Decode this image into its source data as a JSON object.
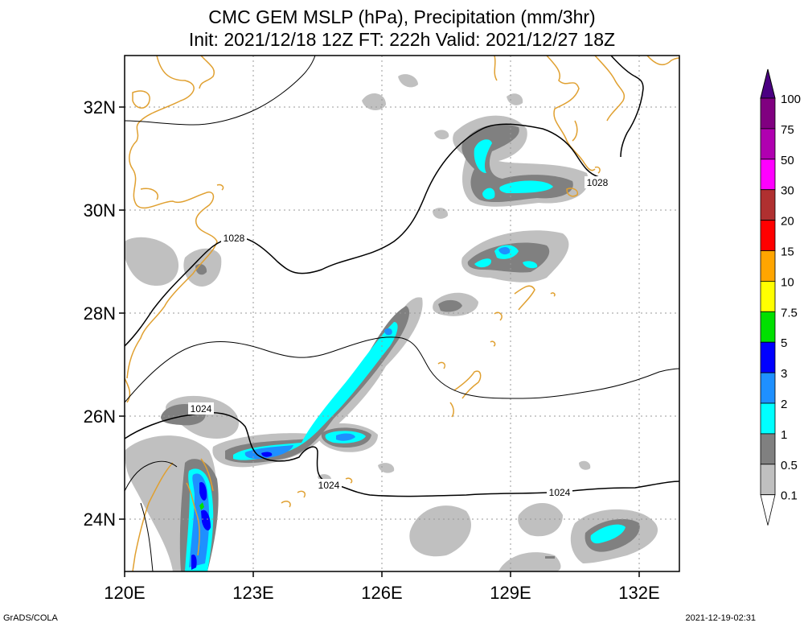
{
  "title": {
    "line1": "CMC GEM MSLP (hPa), Precipitation (mm/3hr)",
    "line2": "Init: 2021/12/18 12Z  FT: 222h  Valid: 2021/12/27 18Z"
  },
  "axes": {
    "lat_labels": [
      "32N",
      "30N",
      "28N",
      "26N",
      "24N"
    ],
    "lon_labels": [
      "120E",
      "123E",
      "126E",
      "129E",
      "132E"
    ]
  },
  "isobar_labels": [
    "1028",
    "1028",
    "1024",
    "1024",
    "1024"
  ],
  "colorbar": {
    "labels": [
      "100",
      "75",
      "50",
      "30",
      "20",
      "15",
      "10",
      "7.5",
      "5",
      "3",
      "2",
      "1",
      "0.5",
      "0.1"
    ],
    "colors": [
      "#800080",
      "#b000b0",
      "#ff00ff",
      "#b03030",
      "#ff0000",
      "#ffa500",
      "#ffff00",
      "#00e000",
      "#0000ff",
      "#1e90ff",
      "#00ffff",
      "#808080",
      "#c0c0c0",
      "#ffffff"
    ]
  },
  "footer": {
    "left": "GrADS/COLA",
    "right": "2021-12-19-02:31"
  }
}
